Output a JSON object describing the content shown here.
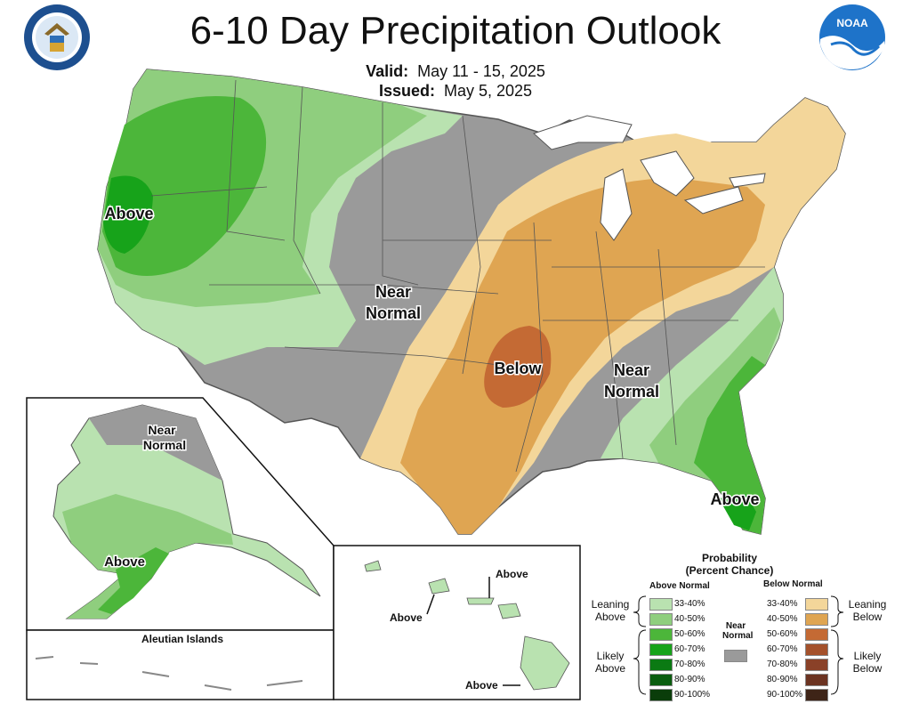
{
  "header": {
    "title": "6-10 Day Precipitation Outlook",
    "valid_label": "Valid:",
    "valid_value": "May 11 - 15, 2025",
    "issued_label": "Issued:",
    "issued_value": "May 5, 2025"
  },
  "logos": {
    "left": "department-of-commerce-seal",
    "right": "noaa-logo",
    "noaa_text": "NOAA"
  },
  "map_labels": {
    "above_west": "Above",
    "near_normal_central_1": "Near",
    "near_normal_central_2": "Normal",
    "below_central": "Below",
    "near_normal_southeast_1": "Near",
    "near_normal_southeast_2": "Normal",
    "above_florida": "Above",
    "alaska_near_1": "Near",
    "alaska_near_2": "Normal",
    "alaska_above": "Above",
    "aleutian_islands": "Aleutian Islands",
    "hawaii_above_1": "Above",
    "hawaii_above_2": "Above",
    "hawaii_above_3": "Above"
  },
  "legend": {
    "title_1": "Probability",
    "title_2": "(Percent Chance)",
    "above_header": "Above Normal",
    "below_header": "Below Normal",
    "near_label_1": "Near",
    "near_label_2": "Normal",
    "leaning_above_1": "Leaning",
    "leaning_above_2": "Above",
    "likely_above_1": "Likely",
    "likely_above_2": "Above",
    "leaning_below_1": "Leaning",
    "leaning_below_2": "Below",
    "likely_below_1": "Likely",
    "likely_below_2": "Below",
    "above_items": [
      {
        "label": "33-40%",
        "color": "#b9e2b0"
      },
      {
        "label": "40-50%",
        "color": "#8fce7e"
      },
      {
        "label": "50-60%",
        "color": "#4cb63a"
      },
      {
        "label": "60-70%",
        "color": "#17a31a"
      },
      {
        "label": "70-80%",
        "color": "#0b7a13"
      },
      {
        "label": "80-90%",
        "color": "#0a5d0f"
      },
      {
        "label": "90-100%",
        "color": "#0a3d0a"
      }
    ],
    "below_items": [
      {
        "label": "33-40%",
        "color": "#f3d69a"
      },
      {
        "label": "40-50%",
        "color": "#dfa552"
      },
      {
        "label": "50-60%",
        "color": "#c46a34"
      },
      {
        "label": "60-70%",
        "color": "#a4512b"
      },
      {
        "label": "70-80%",
        "color": "#8a4128"
      },
      {
        "label": "80-90%",
        "color": "#6b3321"
      },
      {
        "label": "90-100%",
        "color": "#3e2417"
      }
    ],
    "near_color": "#9a9a9a"
  },
  "colors": {
    "gray": "#9a9a9a",
    "lean_above": "#b9e2b0",
    "above_40": "#8fce7e",
    "above_50": "#4cb63a",
    "above_60": "#17a31a",
    "lean_below": "#f3d69a",
    "below_40": "#dfa552",
    "below_50": "#c46a34"
  }
}
